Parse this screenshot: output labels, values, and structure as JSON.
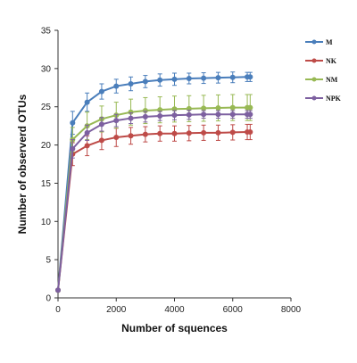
{
  "chart_data": {
    "type": "line",
    "xlabel": "Number of squences",
    "ylabel": "Number of observerd OTUs",
    "xlim": [
      0,
      8000
    ],
    "ylim": [
      0,
      35
    ],
    "xticks": [
      0,
      2000,
      4000,
      6000,
      8000
    ],
    "yticks": [
      0,
      5,
      10,
      15,
      20,
      25,
      30,
      35
    ],
    "legend_position": "top-right",
    "x": [
      0,
      500,
      1000,
      1500,
      2000,
      2500,
      3000,
      3500,
      4000,
      4500,
      5000,
      5500,
      6000,
      6500,
      6600
    ],
    "series": [
      {
        "name": "M",
        "color": "#4a7ebb",
        "values": [
          1.0,
          22.9,
          25.6,
          27.0,
          27.7,
          28.0,
          28.3,
          28.5,
          28.6,
          28.7,
          28.75,
          28.8,
          28.85,
          28.9,
          28.9
        ],
        "errors": [
          0.0,
          1.5,
          1.2,
          1.0,
          0.9,
          0.9,
          0.8,
          0.8,
          0.8,
          0.7,
          0.7,
          0.7,
          0.7,
          0.6,
          0.6
        ]
      },
      {
        "name": "NK",
        "color": "#be4b48",
        "values": [
          1.0,
          18.8,
          19.9,
          20.6,
          21.0,
          21.2,
          21.4,
          21.5,
          21.5,
          21.55,
          21.6,
          21.6,
          21.65,
          21.7,
          21.7
        ],
        "errors": [
          0.0,
          1.5,
          1.3,
          1.2,
          1.2,
          1.1,
          1.0,
          1.0,
          1.0,
          1.0,
          1.0,
          1.0,
          1.0,
          1.0,
          1.0
        ]
      },
      {
        "name": "NM",
        "color": "#98b954",
        "values": [
          1.0,
          20.7,
          22.5,
          23.4,
          23.9,
          24.3,
          24.5,
          24.6,
          24.7,
          24.75,
          24.8,
          24.85,
          24.9,
          24.9,
          24.9
        ],
        "errors": [
          0.0,
          1.6,
          1.8,
          1.7,
          1.7,
          1.7,
          1.7,
          1.7,
          1.7,
          1.7,
          1.7,
          1.7,
          1.7,
          1.7,
          1.7
        ]
      },
      {
        "name": "NPK",
        "color": "#7d60a0",
        "values": [
          1.0,
          19.5,
          21.6,
          22.7,
          23.2,
          23.5,
          23.7,
          23.8,
          23.9,
          23.95,
          24.0,
          24.0,
          24.0,
          24.0,
          24.0
        ],
        "errors": [
          0.0,
          1.2,
          1.0,
          0.9,
          0.8,
          0.7,
          0.7,
          0.6,
          0.6,
          0.6,
          0.5,
          0.5,
          0.5,
          0.5,
          0.5
        ]
      }
    ]
  }
}
